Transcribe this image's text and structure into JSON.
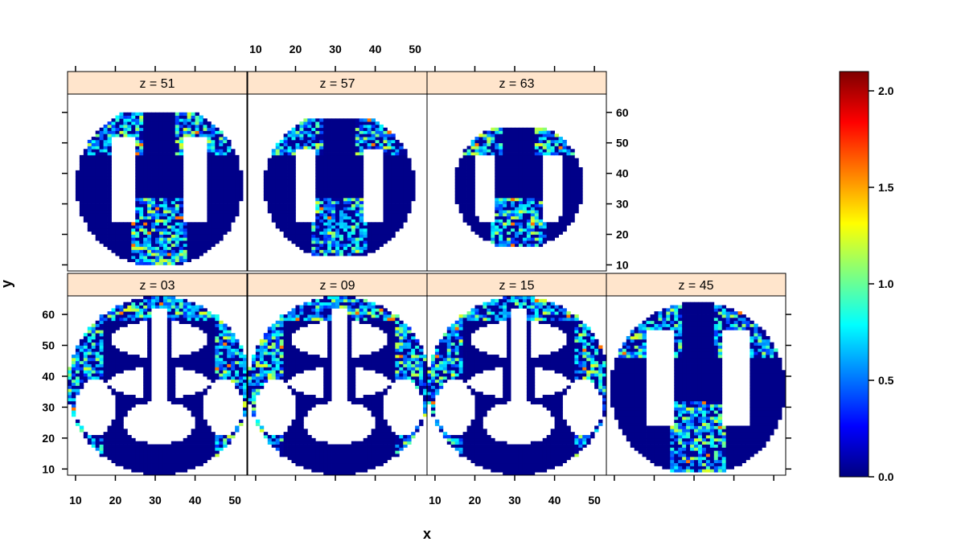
{
  "chart_data": {
    "type": "heatmap",
    "xlabel": "x",
    "ylabel": "y",
    "panels": [
      {
        "label": "z = 51",
        "row": 0,
        "col": 0
      },
      {
        "label": "z = 57",
        "row": 0,
        "col": 1
      },
      {
        "label": "z = 63",
        "row": 0,
        "col": 2
      },
      {
        "label": "z = 03",
        "row": 1,
        "col": 0
      },
      {
        "label": "z = 09",
        "row": 1,
        "col": 1
      },
      {
        "label": "z = 15",
        "row": 1,
        "col": 2
      },
      {
        "label": "z = 45",
        "row": 1,
        "col": 3
      }
    ],
    "x_ticks": [
      10,
      20,
      30,
      40,
      50
    ],
    "y_ticks": [
      10,
      20,
      30,
      40,
      50,
      60
    ],
    "xlim": [
      8,
      53
    ],
    "ylim": [
      8,
      66
    ],
    "colorbar": {
      "range": [
        0.0,
        2.1
      ],
      "ticks": [
        "0.0",
        "0.5",
        "1.0",
        "1.5",
        "2.0"
      ],
      "tick_values": [
        0.0,
        0.5,
        1.0,
        1.5,
        2.0
      ],
      "colors": [
        "#00007f",
        "#0000ff",
        "#007fff",
        "#00ffff",
        "#7fff7f",
        "#ffff00",
        "#ff7f00",
        "#ff0000",
        "#7f0000"
      ]
    },
    "grid": false,
    "legend_position": "right"
  }
}
